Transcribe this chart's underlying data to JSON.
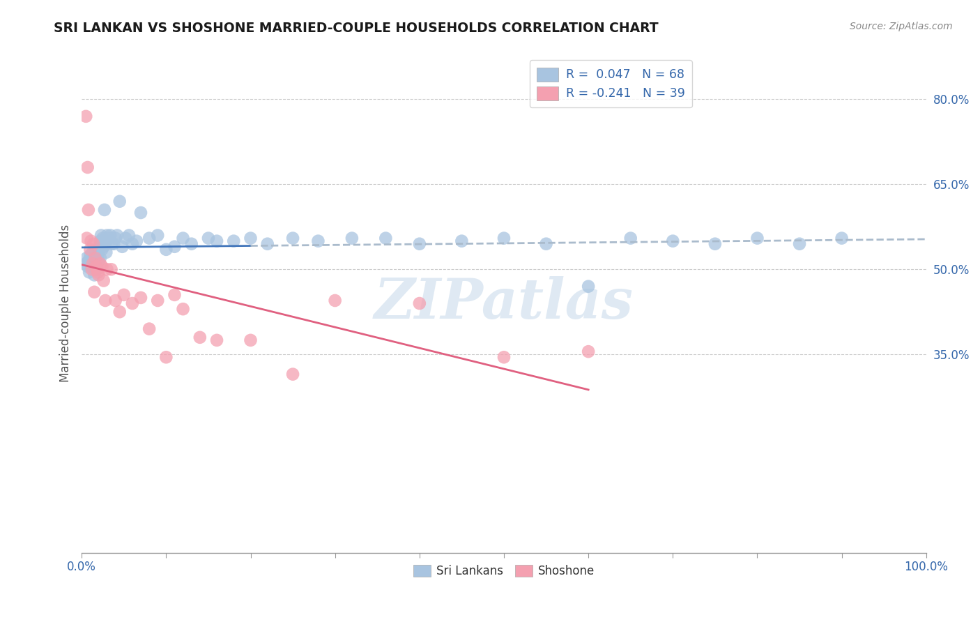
{
  "title": "SRI LANKAN VS SHOSHONE MARRIED-COUPLE HOUSEHOLDS CORRELATION CHART",
  "source": "Source: ZipAtlas.com",
  "ylabel": "Married-couple Households",
  "xlim": [
    0,
    1.0
  ],
  "ylim": [
    0.0,
    0.88
  ],
  "ytick_positions": [
    0.35,
    0.5,
    0.65,
    0.8
  ],
  "ytick_labels": [
    "35.0%",
    "50.0%",
    "65.0%",
    "80.0%"
  ],
  "xtick_positions": [
    0.0,
    0.1,
    0.2,
    0.3,
    0.4,
    0.5,
    0.6,
    0.7,
    0.8,
    0.9,
    1.0
  ],
  "sri_lankan_color": "#a8c4e0",
  "shoshone_color": "#f4a0b0",
  "trend_sri_solid_color": "#4477bb",
  "trend_sri_dash_color": "#aabbcc",
  "trend_sho_color": "#e06080",
  "watermark": "ZIPatlas",
  "sri_lankans_x": [
    0.005,
    0.006,
    0.007,
    0.008,
    0.009,
    0.01,
    0.011,
    0.012,
    0.013,
    0.014,
    0.015,
    0.015,
    0.016,
    0.017,
    0.017,
    0.018,
    0.019,
    0.02,
    0.021,
    0.022,
    0.022,
    0.023,
    0.024,
    0.025,
    0.026,
    0.027,
    0.028,
    0.029,
    0.03,
    0.032,
    0.034,
    0.036,
    0.038,
    0.04,
    0.042,
    0.045,
    0.048,
    0.052,
    0.056,
    0.06,
    0.065,
    0.07,
    0.08,
    0.09,
    0.1,
    0.11,
    0.12,
    0.13,
    0.15,
    0.16,
    0.18,
    0.2,
    0.22,
    0.25,
    0.28,
    0.32,
    0.36,
    0.4,
    0.45,
    0.5,
    0.55,
    0.6,
    0.65,
    0.7,
    0.75,
    0.8,
    0.85,
    0.9
  ],
  "sri_lankans_y": [
    0.51,
    0.52,
    0.505,
    0.515,
    0.495,
    0.525,
    0.51,
    0.505,
    0.53,
    0.515,
    0.52,
    0.49,
    0.505,
    0.53,
    0.515,
    0.5,
    0.525,
    0.515,
    0.54,
    0.52,
    0.55,
    0.56,
    0.535,
    0.555,
    0.54,
    0.605,
    0.545,
    0.53,
    0.56,
    0.555,
    0.56,
    0.545,
    0.545,
    0.555,
    0.56,
    0.62,
    0.54,
    0.555,
    0.56,
    0.545,
    0.55,
    0.6,
    0.555,
    0.56,
    0.535,
    0.54,
    0.555,
    0.545,
    0.555,
    0.55,
    0.55,
    0.555,
    0.545,
    0.555,
    0.55,
    0.555,
    0.555,
    0.545,
    0.55,
    0.555,
    0.545,
    0.47,
    0.555,
    0.55,
    0.545,
    0.555,
    0.545,
    0.555
  ],
  "shoshone_x": [
    0.005,
    0.006,
    0.007,
    0.008,
    0.01,
    0.011,
    0.012,
    0.013,
    0.014,
    0.015,
    0.016,
    0.017,
    0.018,
    0.019,
    0.02,
    0.022,
    0.024,
    0.026,
    0.028,
    0.03,
    0.035,
    0.04,
    0.045,
    0.05,
    0.06,
    0.07,
    0.08,
    0.09,
    0.1,
    0.11,
    0.12,
    0.14,
    0.16,
    0.2,
    0.25,
    0.3,
    0.4,
    0.5,
    0.6
  ],
  "shoshone_y": [
    0.77,
    0.555,
    0.68,
    0.605,
    0.535,
    0.55,
    0.5,
    0.51,
    0.545,
    0.46,
    0.52,
    0.505,
    0.5,
    0.495,
    0.49,
    0.51,
    0.505,
    0.48,
    0.445,
    0.5,
    0.5,
    0.445,
    0.425,
    0.455,
    0.44,
    0.45,
    0.395,
    0.445,
    0.345,
    0.455,
    0.43,
    0.38,
    0.375,
    0.375,
    0.315,
    0.445,
    0.44,
    0.345,
    0.355
  ]
}
